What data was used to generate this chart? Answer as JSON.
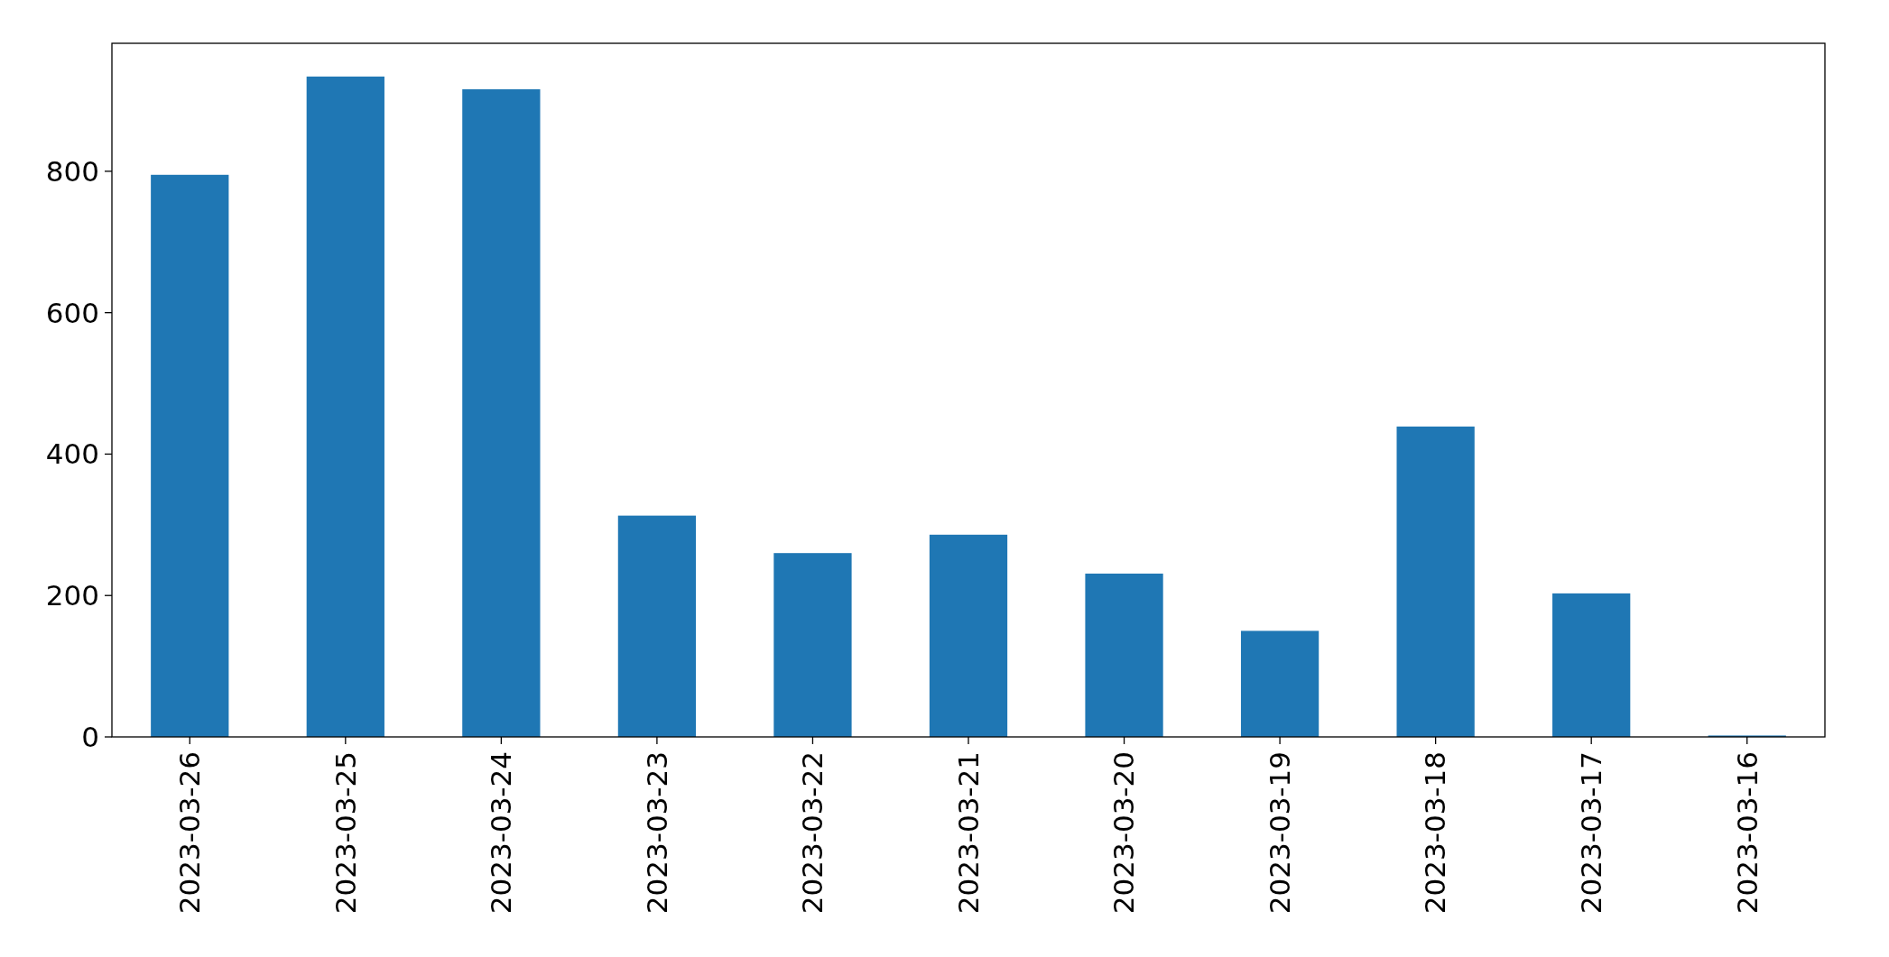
{
  "chart_data": {
    "type": "bar",
    "categories": [
      "2023-03-26",
      "2023-03-25",
      "2023-03-24",
      "2023-03-23",
      "2023-03-22",
      "2023-03-21",
      "2023-03-20",
      "2023-03-19",
      "2023-03-18",
      "2023-03-17",
      "2023-03-16"
    ],
    "values": [
      795,
      934,
      916,
      313,
      260,
      286,
      231,
      150,
      439,
      203,
      2
    ],
    "color": "#1f77b4",
    "ylim": [
      0,
      981
    ],
    "yticks": [
      0,
      200,
      400,
      600,
      800
    ],
    "grid": false
  }
}
